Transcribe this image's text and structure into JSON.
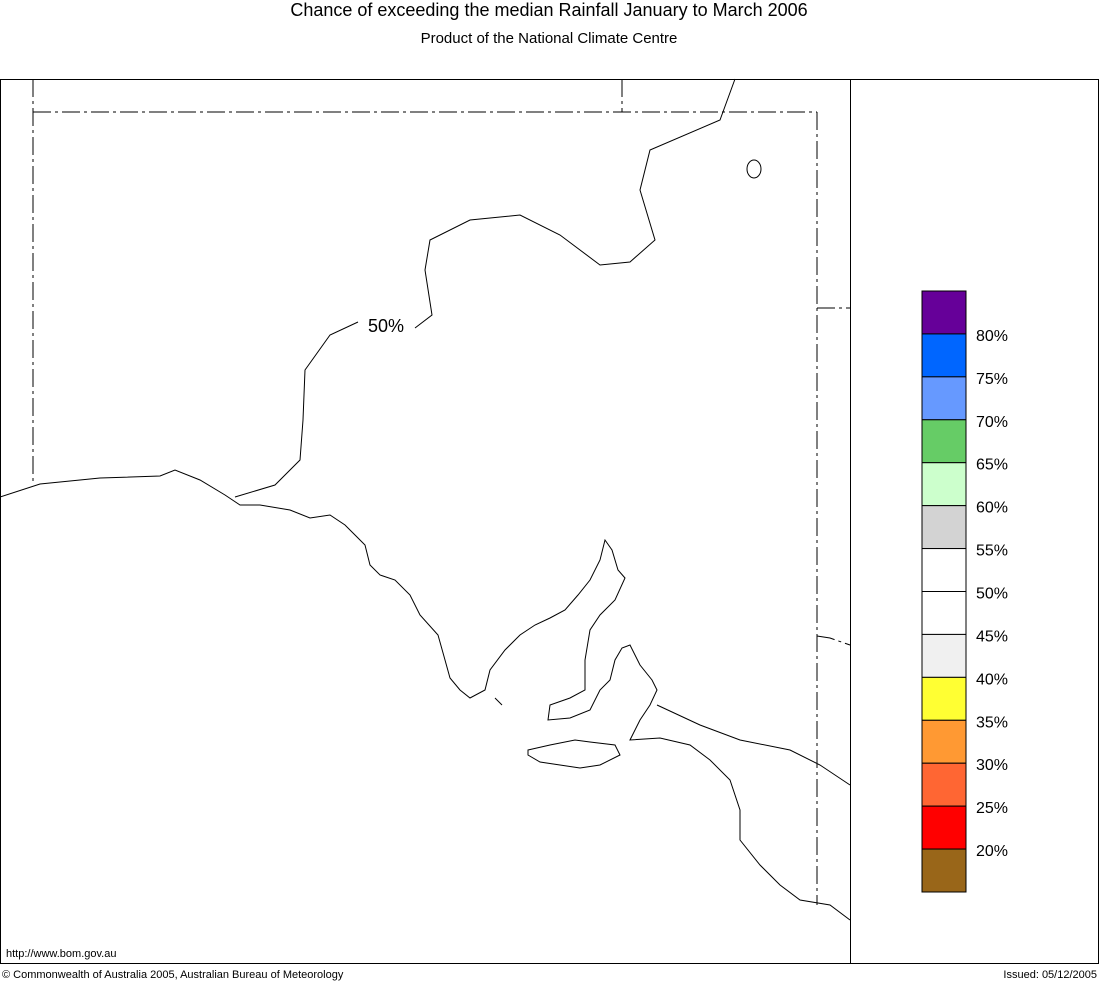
{
  "header": {
    "title": "Chance of exceeding the median Rainfall January to March 2006",
    "subtitle": "Product of the National Climate Centre"
  },
  "map": {
    "contour_label": "50%"
  },
  "legend": {
    "colors": [
      "#660099",
      "#0066ff",
      "#6699ff",
      "#66cc66",
      "#ccffcc",
      "#d3d3d3",
      "#ffffff",
      "#ffffff",
      "#f0f0f0",
      "#ffff33",
      "#ff9933",
      "#ff6633",
      "#ff0000",
      "#996619"
    ],
    "labels": [
      "80%",
      "75%",
      "70%",
      "65%",
      "60%",
      "55%",
      "50%",
      "45%",
      "40%",
      "35%",
      "30%",
      "25%",
      "20%"
    ]
  },
  "footer": {
    "url": "http://www.bom.gov.au",
    "copyright": "© Commonwealth of Australia 2005, Australian Bureau of Meteorology",
    "issued": "Issued: 05/12/2005"
  }
}
